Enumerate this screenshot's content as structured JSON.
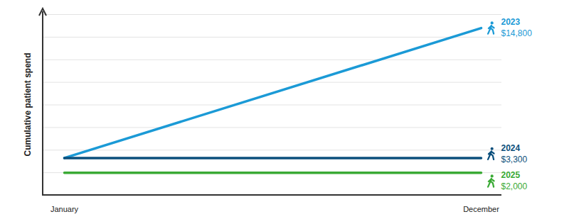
{
  "chart_data": {
    "type": "line",
    "ylabel": "Cumulative patient spend",
    "categories": [
      "January",
      "December"
    ],
    "series": [
      {
        "name": "2023",
        "color": "#1b9ad6",
        "values": [
          3300,
          14800
        ],
        "value_labels": [
          null,
          "$14,800"
        ]
      },
      {
        "name": "2024",
        "color": "#0b4f7c",
        "values": [
          3300,
          3300
        ],
        "value_labels": [
          null,
          "$3,300"
        ]
      },
      {
        "name": "2025",
        "color": "#3aaa35",
        "values": [
          2000,
          2000
        ],
        "value_labels": [
          null,
          "$2,000"
        ]
      }
    ],
    "ylim": [
      0,
      16000
    ],
    "yticks": [
      0,
      2000,
      4000,
      6000,
      8000,
      10000,
      12000,
      14000,
      16000
    ],
    "grid": true,
    "tick_labels": "x"
  }
}
